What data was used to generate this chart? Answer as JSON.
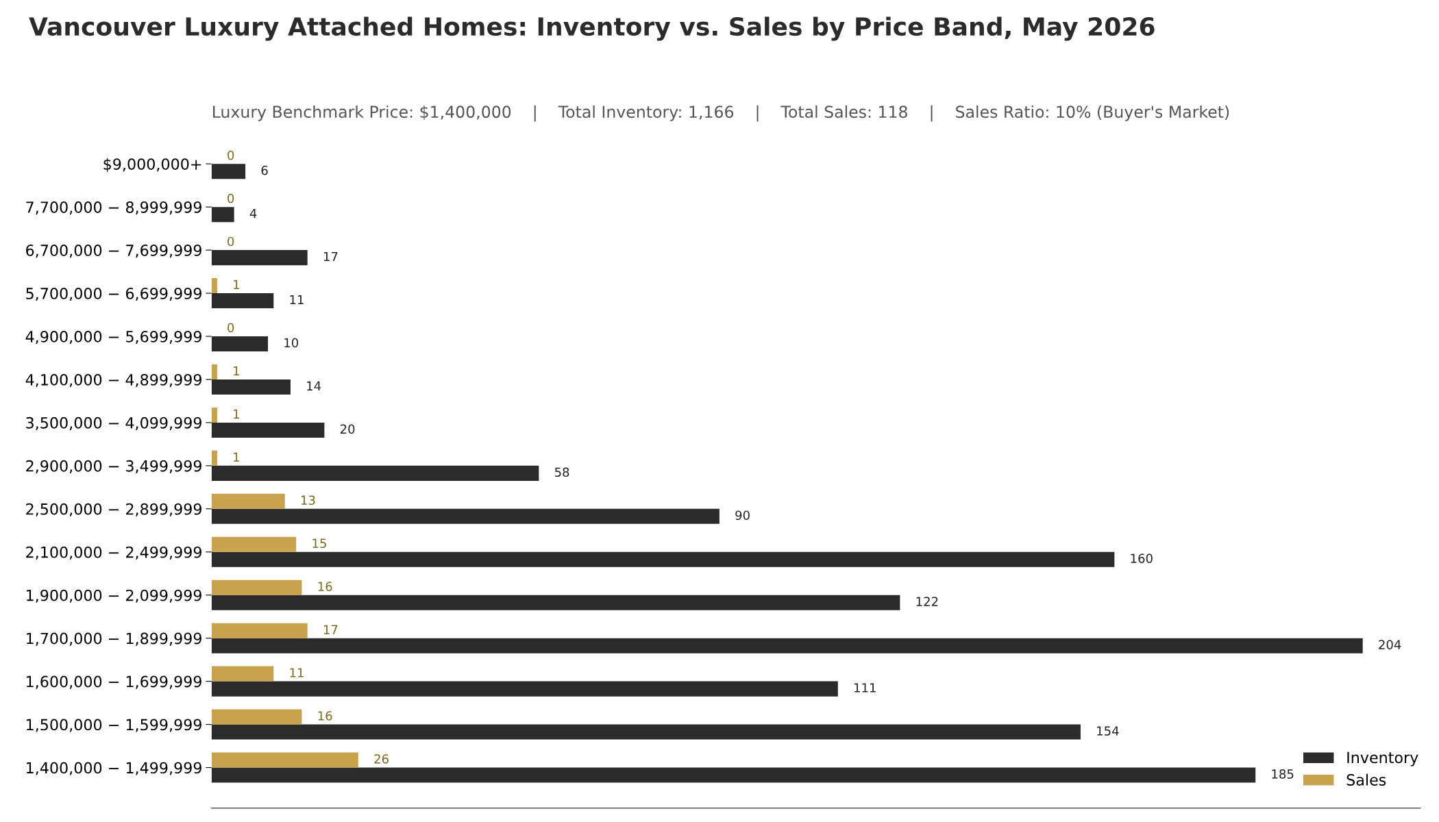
{
  "chart_data": {
    "type": "bar",
    "orientation": "horizontal",
    "title": "Vancouver Luxury Attached Homes: Inventory vs. Sales by Price Band, May 2026",
    "subtitle": "Luxury Benchmark Price: $1,400,000    |    Total Inventory: 1,166    |    Total Sales: 118    |    Sales Ratio: 10% (Buyer's Market)",
    "categories": [
      "$9,000,000+",
      "7,700,000 − 8,999,999",
      "6,700,000 − 7,699,999",
      "5,700,000 − 6,699,999",
      "4,900,000 − 5,699,999",
      "4,100,000 − 4,899,999",
      "3,500,000 − 4,099,999",
      "2,900,000 − 3,499,999",
      "2,500,000 − 2,899,999",
      "2,100,000 − 2,499,999",
      "1,900,000 − 2,099,999",
      "1,700,000 − 1,899,999",
      "1,600,000 − 1,699,999",
      "1,500,000 − 1,599,999",
      "1,400,000 − 1,499,999"
    ],
    "series": [
      {
        "name": "Inventory",
        "color": "#2b2b2b",
        "values": [
          6,
          4,
          17,
          11,
          10,
          14,
          20,
          58,
          90,
          160,
          122,
          204,
          111,
          154,
          185
        ]
      },
      {
        "name": "Sales",
        "color": "#c9a24e",
        "values": [
          0,
          0,
          0,
          1,
          0,
          1,
          1,
          1,
          13,
          15,
          16,
          17,
          11,
          16,
          26
        ]
      }
    ],
    "tick_labels": "y",
    "data_labels": true,
    "grid": false,
    "legend": "bottom right"
  }
}
